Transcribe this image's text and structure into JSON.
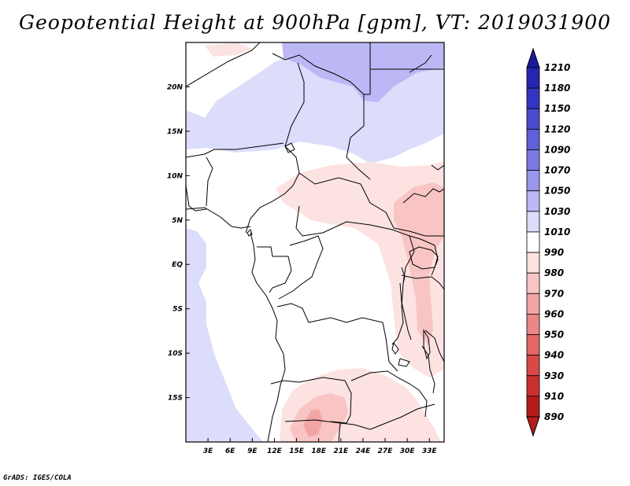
{
  "title": "Geopotential Height at 900hPa [gpm], VT: 2019031900",
  "credit": "GrADS: IGES/COLA",
  "map": {
    "lon_range": [
      0,
      35
    ],
    "lat_range": [
      -20,
      25
    ],
    "lon_ticks": [
      "3E",
      "6E",
      "9E",
      "12E",
      "15E",
      "18E",
      "21E",
      "24E",
      "27E",
      "30E",
      "33E"
    ],
    "lat_ticks": [
      "20N",
      "15N",
      "10N",
      "5N",
      "EQ",
      "5S",
      "10S",
      "15S"
    ]
  },
  "colorbar": {
    "levels": [
      "1210",
      "1180",
      "1150",
      "1120",
      "1090",
      "1070",
      "1050",
      "1030",
      "1010",
      "990",
      "980",
      "970",
      "960",
      "950",
      "940",
      "930",
      "910",
      "890"
    ],
    "colors": [
      "#1a1a9a",
      "#2525b0",
      "#3434c0",
      "#4a4acc",
      "#6060d8",
      "#7a78e2",
      "#9a96ec",
      "#bcb8f5",
      "#dcdcfb",
      "#ffffff",
      "#fde2e2",
      "#f8c4c4",
      "#f2a5a5",
      "#eb8686",
      "#e46666",
      "#d94848",
      "#c93030",
      "#b41c1c"
    ]
  }
}
